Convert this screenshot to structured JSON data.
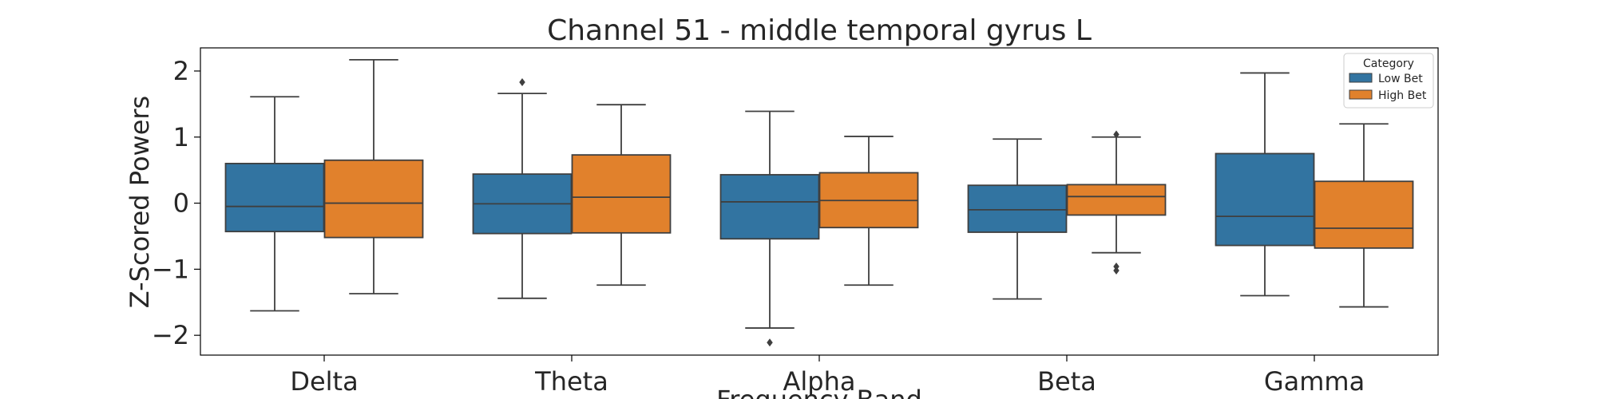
{
  "chart_data": {
    "type": "box",
    "title": "Channel 51 - middle temporal gyrus L",
    "xlabel": "Frequency Band",
    "ylabel": "Z-Scored Powers",
    "ylim": [
      -2.3,
      2.35
    ],
    "yticks": [
      -2,
      -1,
      0,
      1,
      2
    ],
    "ytick_labels": [
      "−2",
      "−1",
      "0",
      "1",
      "2"
    ],
    "categories": [
      "Delta",
      "Theta",
      "Alpha",
      "Beta",
      "Gamma"
    ],
    "grid": false,
    "legend": {
      "title": "Category",
      "placement": "top-right"
    },
    "series": [
      {
        "name": "Low Bet",
        "color": "#3274a1",
        "boxes": [
          {
            "whislo": -1.63,
            "q1": -0.43,
            "med": -0.05,
            "q3": 0.6,
            "whishi": 1.61,
            "fliers": []
          },
          {
            "whislo": -1.44,
            "q1": -0.46,
            "med": -0.01,
            "q3": 0.44,
            "whishi": 1.66,
            "fliers": [
              1.83
            ]
          },
          {
            "whislo": -1.89,
            "q1": -0.54,
            "med": 0.02,
            "q3": 0.43,
            "whishi": 1.39,
            "fliers": [
              -2.11
            ]
          },
          {
            "whislo": -1.45,
            "q1": -0.44,
            "med": -0.1,
            "q3": 0.27,
            "whishi": 0.97,
            "fliers": []
          },
          {
            "whislo": -1.4,
            "q1": -0.64,
            "med": -0.2,
            "q3": 0.75,
            "whishi": 1.97,
            "fliers": []
          }
        ]
      },
      {
        "name": "High Bet",
        "color": "#e1812c",
        "boxes": [
          {
            "whislo": -1.37,
            "q1": -0.52,
            "med": 0.0,
            "q3": 0.65,
            "whishi": 2.17,
            "fliers": []
          },
          {
            "whislo": -1.24,
            "q1": -0.45,
            "med": 0.09,
            "q3": 0.73,
            "whishi": 1.49,
            "fliers": []
          },
          {
            "whislo": -1.24,
            "q1": -0.37,
            "med": 0.04,
            "q3": 0.46,
            "whishi": 1.01,
            "fliers": []
          },
          {
            "whislo": -0.75,
            "q1": -0.18,
            "med": 0.1,
            "q3": 0.28,
            "whishi": 1.0,
            "fliers": [
              1.04,
              -0.96,
              -1.02
            ]
          },
          {
            "whislo": -1.57,
            "q1": -0.68,
            "med": -0.38,
            "q3": 0.33,
            "whishi": 1.2,
            "fliers": []
          }
        ]
      }
    ]
  }
}
